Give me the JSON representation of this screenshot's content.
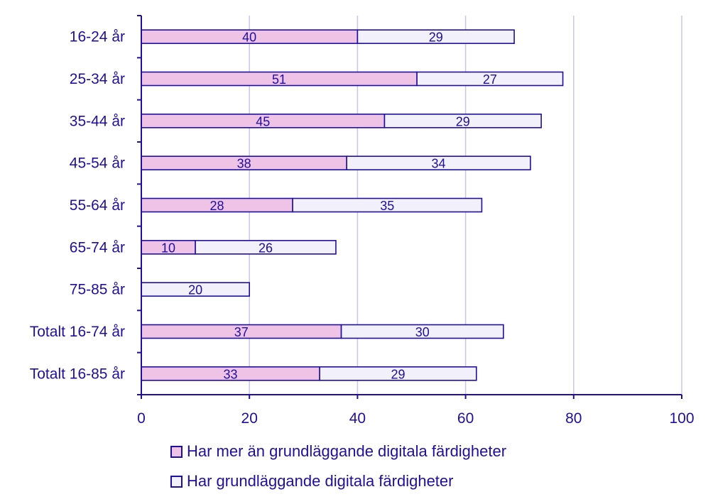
{
  "chart_data": {
    "type": "bar",
    "orientation": "horizontal",
    "stacked": true,
    "categories": [
      "16-24 år",
      "25-34 år",
      "35-44 år",
      "45-54 år",
      "55-64 år",
      "65-74 år",
      "75-85 år",
      "Totalt 16-74 år",
      "Totalt 16-85 år"
    ],
    "series": [
      {
        "name": "Har mer än grundläggande digitala färdigheter",
        "values": [
          40,
          51,
          45,
          38,
          28,
          10,
          0,
          37,
          33
        ],
        "color": "#efc3e6"
      },
      {
        "name": "Har grundläggande digitala färdigheter",
        "values": [
          29,
          27,
          29,
          34,
          35,
          26,
          20,
          30,
          29
        ],
        "color": "#f1f0fb"
      }
    ],
    "data_labels": [
      [
        "40",
        "51",
        "45",
        "38",
        "28",
        "10",
        "",
        "37",
        "33"
      ],
      [
        "29",
        "27",
        "29",
        "34",
        "35",
        "26",
        "20",
        "30",
        "29"
      ]
    ],
    "xlim": [
      0,
      100
    ],
    "xticks": [
      0,
      20,
      40,
      60,
      80,
      100
    ],
    "tick_labels": [
      "0",
      "20",
      "40",
      "60",
      "80",
      "100"
    ],
    "grid": true,
    "legend_position": "bottom",
    "colors": {
      "text": "#1f0fa0",
      "axis": "#1f0fa0",
      "grid": "#c9c6ea"
    }
  }
}
